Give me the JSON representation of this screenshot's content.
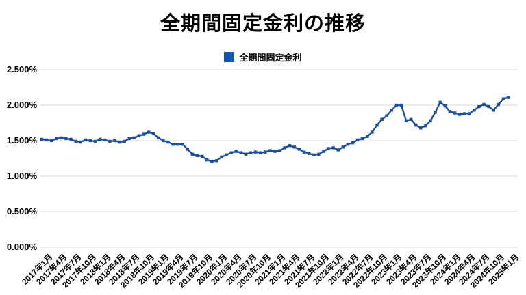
{
  "chart": {
    "title": "全期間固定金利の推移",
    "legend_label": "全期間固定金利"
  },
  "colors": {
    "line": "#1d4f9c",
    "legend_swatch": "#1253b4",
    "grid": "#d9d9d9",
    "text": "#000000",
    "background": "#ffffff"
  },
  "chart_data": {
    "type": "line",
    "title": "全期間固定金利の推移",
    "legend_entries": [
      "全期間固定金利"
    ],
    "legend_position": "top",
    "grid": "horizontal",
    "markers": "square",
    "x_unit": "month",
    "x_start": "2017年1月",
    "x_end": "2025年1月",
    "ylim": [
      0,
      2.5
    ],
    "y_tick_labels": [
      "2.500%",
      "2.000%",
      "1.500%",
      "1.000%",
      "0.500%",
      "0.000%"
    ],
    "x_tick_labels": [
      "2017年1月",
      "2017年4月",
      "2017年7月",
      "2017年10月",
      "2018年1月",
      "2018年4月",
      "2018年7月",
      "2018年10月",
      "2019年1月",
      "2019年4月",
      "2019年7月",
      "2019年10月",
      "2020年1月",
      "2020年4月",
      "2020年7月",
      "2020年10月",
      "2021年1月",
      "2021年4月",
      "2021年7月",
      "2021年10月",
      "2022年1月",
      "2022年4月",
      "2022年7月",
      "2022年10月",
      "2023年1月",
      "2023年4月",
      "2023年7月",
      "2023年10月",
      "2024年1月",
      "2024年4月",
      "2024年7月",
      "2024年10月",
      "2025年1月"
    ],
    "x_ticks_every_n_points": 3,
    "series": [
      {
        "name": "全期間固定金利",
        "unit": "%",
        "values": [
          1.52,
          1.51,
          1.5,
          1.53,
          1.54,
          1.53,
          1.52,
          1.49,
          1.48,
          1.51,
          1.5,
          1.49,
          1.52,
          1.51,
          1.49,
          1.5,
          1.48,
          1.49,
          1.53,
          1.54,
          1.57,
          1.59,
          1.62,
          1.6,
          1.54,
          1.5,
          1.48,
          1.45,
          1.45,
          1.45,
          1.38,
          1.31,
          1.29,
          1.28,
          1.23,
          1.21,
          1.22,
          1.27,
          1.3,
          1.33,
          1.35,
          1.33,
          1.31,
          1.33,
          1.34,
          1.33,
          1.34,
          1.36,
          1.35,
          1.36,
          1.4,
          1.43,
          1.41,
          1.38,
          1.34,
          1.32,
          1.3,
          1.31,
          1.35,
          1.39,
          1.4,
          1.37,
          1.41,
          1.45,
          1.47,
          1.51,
          1.53,
          1.56,
          1.62,
          1.72,
          1.8,
          1.85,
          1.93,
          2.0,
          2.0,
          1.78,
          1.8,
          1.72,
          1.68,
          1.71,
          1.78,
          1.9,
          2.04,
          1.99,
          1.91,
          1.89,
          1.87,
          1.88,
          1.88,
          1.93,
          1.98,
          2.01,
          1.98,
          1.93,
          2.01,
          2.09,
          2.11
        ]
      }
    ]
  }
}
